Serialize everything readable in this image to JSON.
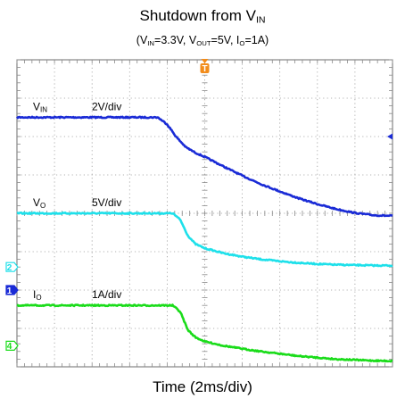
{
  "chart_data": {
    "type": "line",
    "title": {
      "prefix": "Shutdown from V",
      "sub": "IN"
    },
    "subtitle": {
      "parts": [
        {
          "t": "(V",
          "sub": false
        },
        {
          "t": "IN",
          "sub": true
        },
        {
          "t": "=3.3V, V",
          "sub": false
        },
        {
          "t": "OUT",
          "sub": true
        },
        {
          "t": "=5V, I",
          "sub": false
        },
        {
          "t": "O",
          "sub": true
        },
        {
          "t": "=1A)",
          "sub": false
        }
      ]
    },
    "xlabel": "Time (2ms/div)",
    "x_unit": "ms",
    "x_range": [
      0,
      20
    ],
    "grid": {
      "divisions_x": 10,
      "divisions_y": 8,
      "style": "dotted"
    },
    "trigger_marker": "T",
    "series": [
      {
        "name": "VIN",
        "label_main": "V",
        "label_sub": "IN",
        "scale_text": "2V/div",
        "channel_marker": "1",
        "color": "#1a2bd6",
        "x": [
          0,
          7.5,
          8.0,
          8.5,
          9.0,
          9.5,
          10,
          11,
          12,
          13,
          14,
          15,
          16,
          17,
          18,
          19,
          20
        ],
        "y_div": [
          6.5,
          6.5,
          6.32,
          5.98,
          5.72,
          5.58,
          5.47,
          5.22,
          4.98,
          4.76,
          4.57,
          4.39,
          4.24,
          4.11,
          4.01,
          3.95,
          3.93
        ]
      },
      {
        "name": "VO",
        "label_main": "V",
        "label_sub": "O",
        "scale_text": "5V/div",
        "channel_marker": "2",
        "color": "#1ee0ea",
        "x": [
          0,
          8.3,
          8.7,
          9.1,
          9.5,
          10,
          11,
          12,
          13,
          14,
          15,
          16,
          17,
          18,
          19,
          20
        ],
        "y_div": [
          4.0,
          4.0,
          3.83,
          3.42,
          3.2,
          3.09,
          2.96,
          2.87,
          2.8,
          2.75,
          2.71,
          2.68,
          2.66,
          2.65,
          2.64,
          2.64
        ]
      },
      {
        "name": "IO",
        "label_main": "I",
        "label_sub": "O",
        "scale_text": "1A/div",
        "channel_marker": "4",
        "color": "#1adc1a",
        "x": [
          0,
          8.3,
          8.7,
          9.1,
          9.5,
          10,
          11,
          12,
          13,
          14,
          15,
          16,
          17,
          18,
          19,
          20
        ],
        "y_div": [
          1.6,
          1.6,
          1.43,
          0.96,
          0.77,
          0.66,
          0.55,
          0.47,
          0.4,
          0.34,
          0.28,
          0.24,
          0.2,
          0.18,
          0.16,
          0.15
        ]
      }
    ]
  }
}
